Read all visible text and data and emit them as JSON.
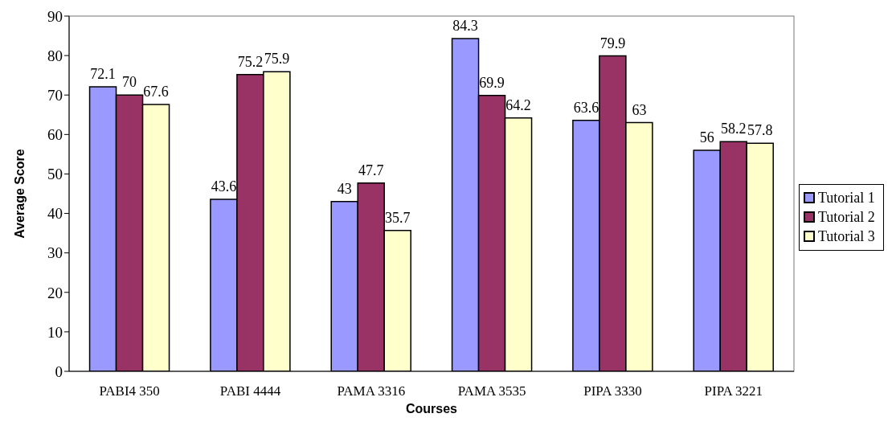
{
  "chart_data": {
    "type": "bar",
    "xlabel": "Courses",
    "ylabel": "Average Score",
    "categories": [
      "PABI4 350",
      "PABI 4444",
      "PAMA 3316",
      "PAMA 3535",
      "PIPA 3330",
      "PIPA 3221"
    ],
    "series": [
      {
        "name": "Tutorial 1",
        "color": "#9999ff",
        "values": [
          72.1,
          43.6,
          43,
          84.3,
          63.6,
          56
        ]
      },
      {
        "name": "Tutorial 2",
        "color": "#993366",
        "values": [
          70,
          75.2,
          47.7,
          69.9,
          79.9,
          58.2
        ]
      },
      {
        "name": "Tutorial 3",
        "color": "#ffffcc",
        "values": [
          67.6,
          75.9,
          35.7,
          64.2,
          63,
          57.8
        ]
      }
    ],
    "ylim": [
      0,
      90
    ],
    "yticks": [
      0,
      10,
      20,
      30,
      40,
      50,
      60,
      70,
      80,
      90
    ],
    "data_labels": true,
    "legend": "right",
    "grid": false
  }
}
